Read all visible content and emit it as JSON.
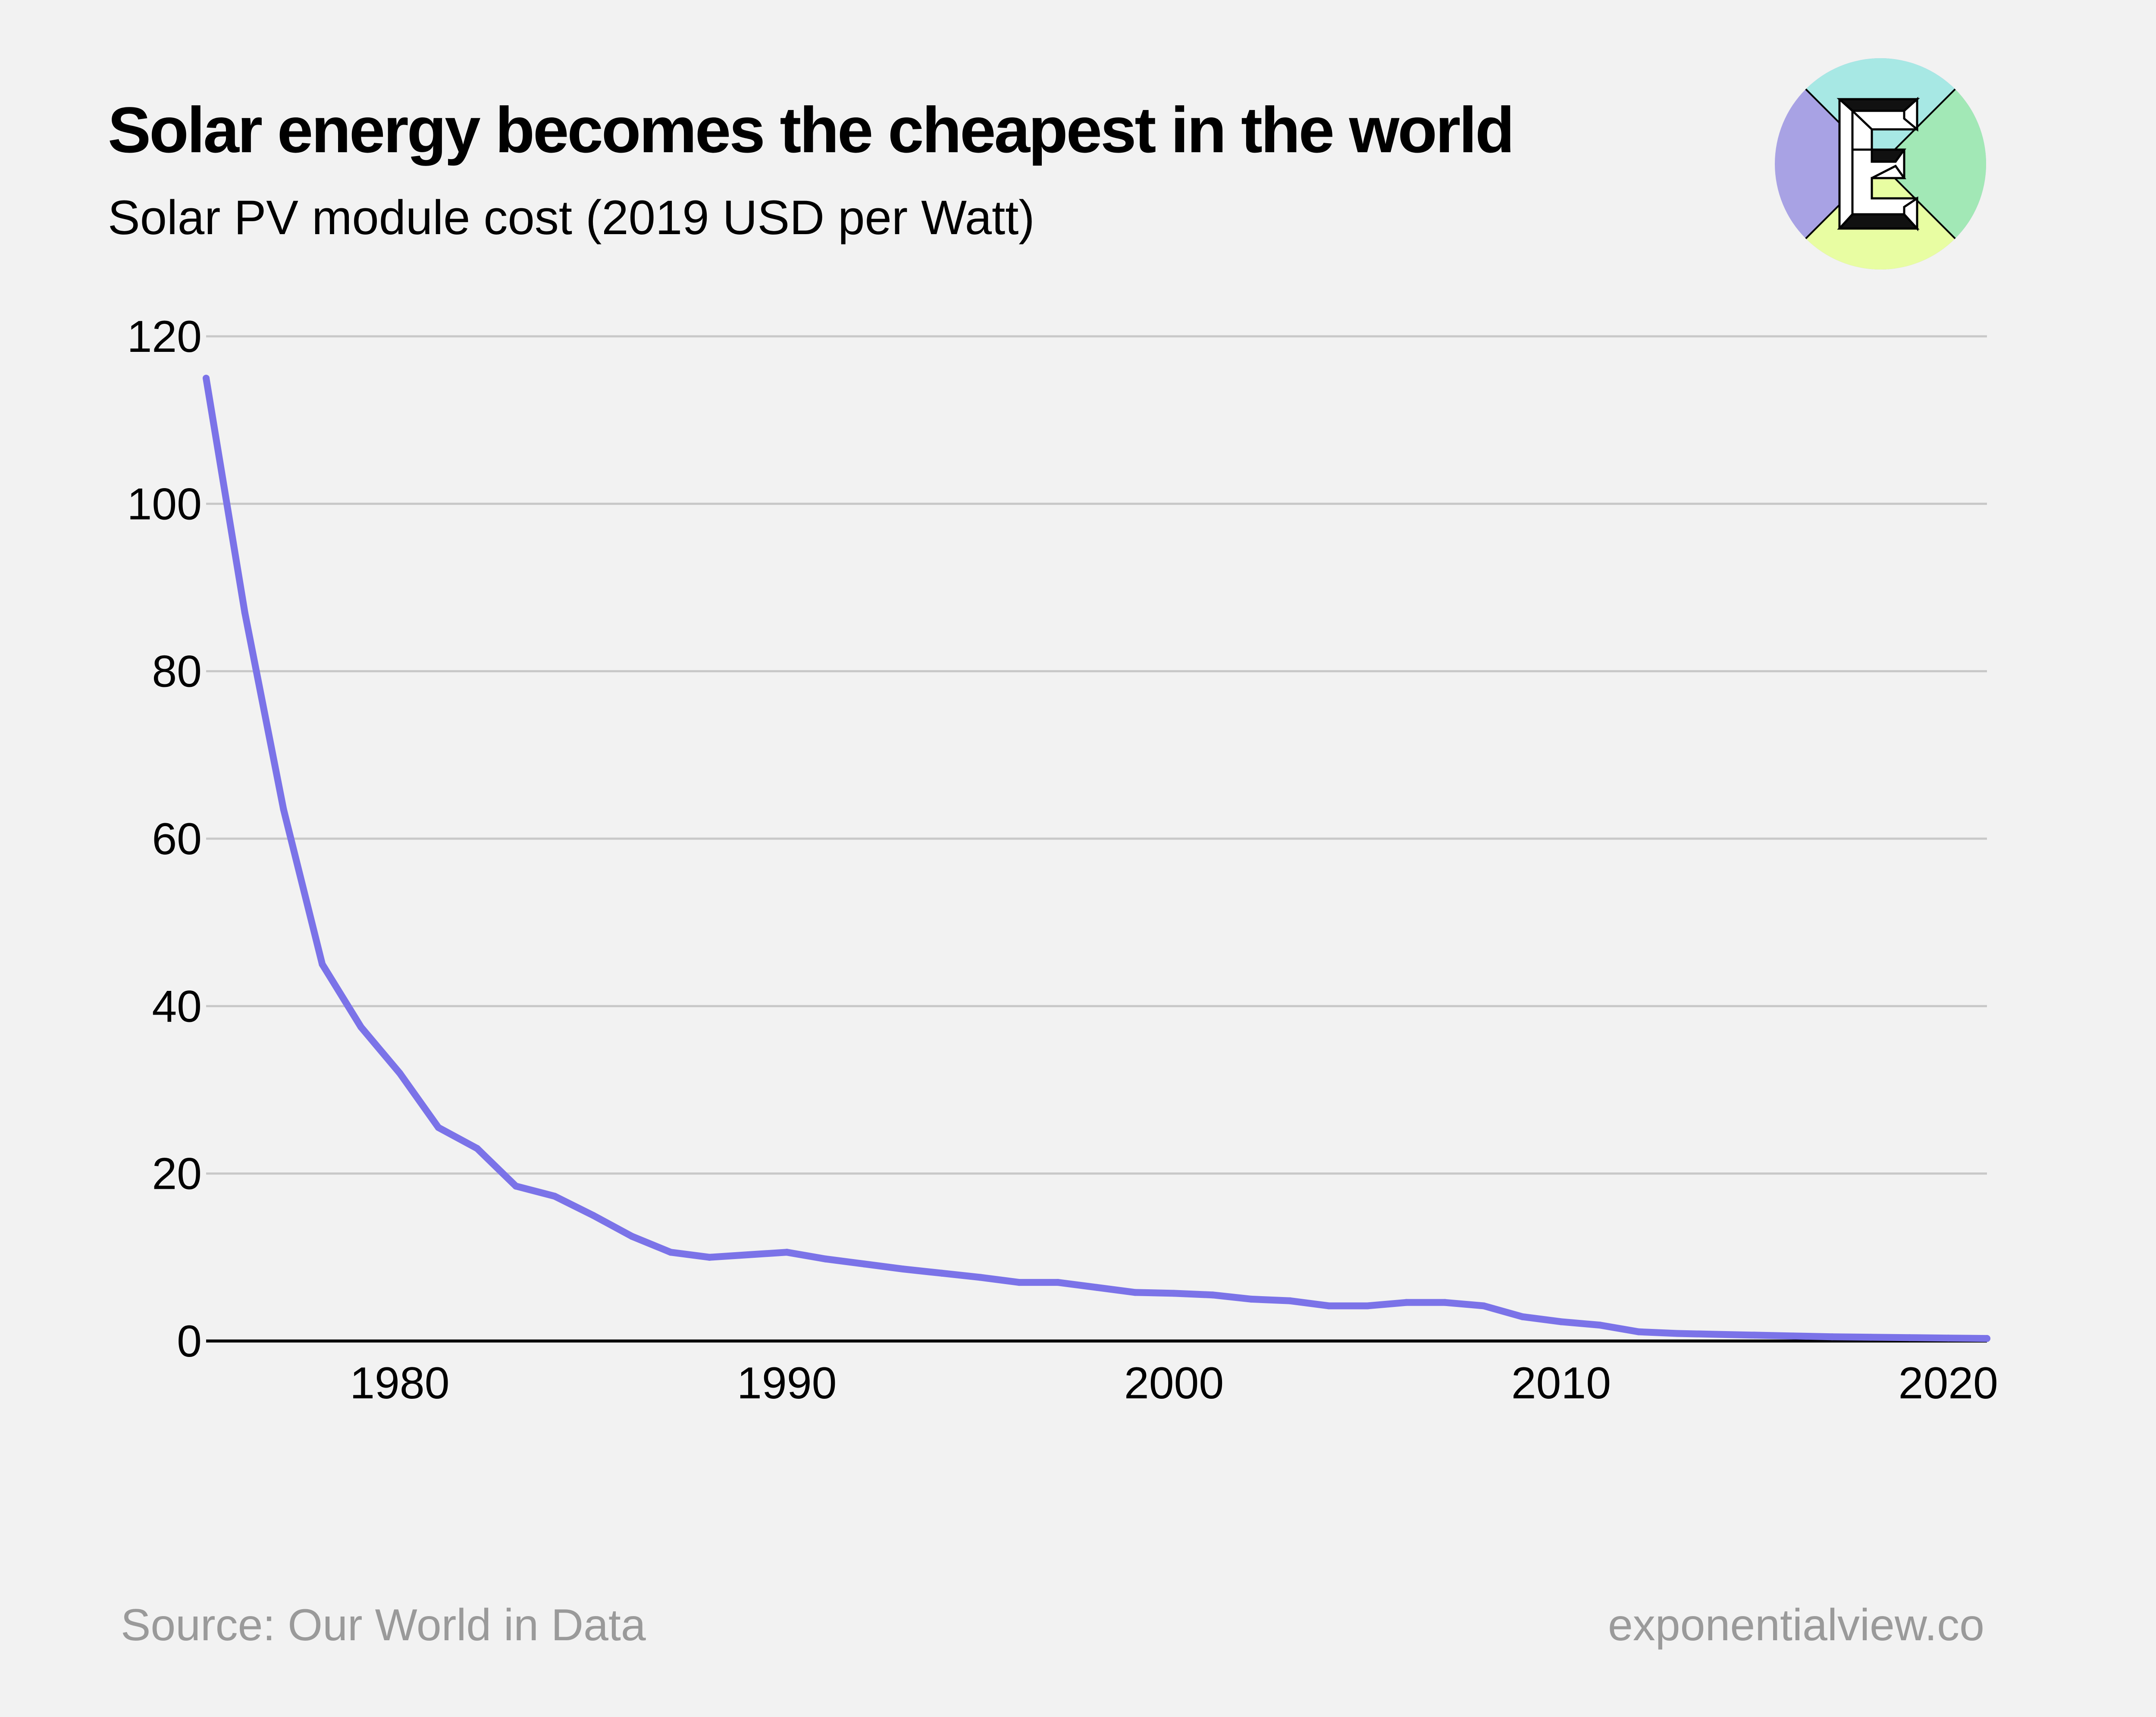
{
  "header": {
    "title": "Solar energy becomes the cheapest in the world",
    "subtitle": "Solar PV module cost (2019 USD per Watt)"
  },
  "footer": {
    "source": "Source: Our World in Data",
    "site": "exponentialview.co"
  },
  "logo": {
    "letter": "E",
    "colors": [
      "#a7e8e4",
      "#a2e8b6",
      "#e8fda2",
      "#a8a2e4"
    ]
  },
  "colors": {
    "line": "#7b73e8",
    "grid": "#c8c8c8",
    "axis": "#000000",
    "background": "#f2f2f2"
  },
  "chart_data": {
    "type": "line",
    "title": "Solar energy becomes the cheapest in the world",
    "subtitle": "Solar PV module cost (2019 USD per Watt)",
    "xlabel": "",
    "ylabel": "",
    "xlim": [
      1975,
      2021
    ],
    "ylim": [
      0,
      120
    ],
    "grid": true,
    "x_ticks": [
      1980,
      1990,
      2000,
      2010,
      2020
    ],
    "y_ticks": [
      0,
      20,
      40,
      60,
      80,
      100,
      120
    ],
    "series": [
      {
        "name": "Solar PV module cost",
        "x": [
          1975,
          1976,
          1977,
          1978,
          1979,
          1980,
          1981,
          1982,
          1983,
          1984,
          1985,
          1986,
          1987,
          1988,
          1989,
          1990,
          1991,
          1992,
          1993,
          1994,
          1995,
          1996,
          1997,
          1998,
          1999,
          2000,
          2001,
          2002,
          2003,
          2004,
          2005,
          2006,
          2007,
          2008,
          2009,
          2010,
          2011,
          2012,
          2013,
          2014,
          2015,
          2016,
          2017,
          2018,
          2019,
          2020,
          2021
        ],
        "values": [
          115,
          87,
          63.5,
          45,
          37.5,
          32,
          25.5,
          23,
          18.5,
          17.3,
          15,
          12.5,
          10.6,
          10,
          10.3,
          10.6,
          9.8,
          9.2,
          8.6,
          8.1,
          7.6,
          7,
          7,
          6.4,
          5.8,
          5.7,
          5.5,
          5,
          4.8,
          4.2,
          4.2,
          4.6,
          4.6,
          4.2,
          2.9,
          2.3,
          1.9,
          1.1,
          0.9,
          0.8,
          0.7,
          0.6,
          0.5,
          0.45,
          0.4,
          0.35,
          0.3
        ]
      }
    ]
  }
}
